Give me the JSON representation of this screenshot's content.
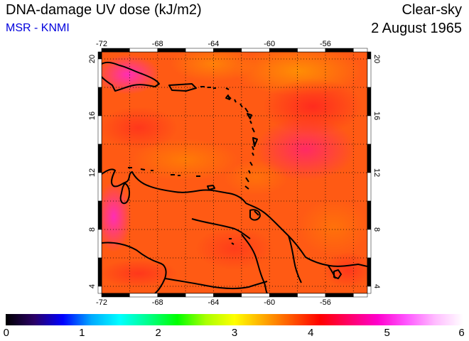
{
  "header": {
    "title": "DNA-damage UV dose (kJ/m2)",
    "subtitle": "MSR - KNMI",
    "condition": "Clear-sky",
    "date": "2 August 1965"
  },
  "map": {
    "lon_range": [
      -72,
      -53
    ],
    "lat_range": [
      3.5,
      20.5
    ],
    "lon_ticks": [
      -72,
      -68,
      -64,
      -60,
      -56
    ],
    "lat_ticks": [
      4,
      8,
      12,
      16,
      20
    ],
    "lon_tick_labels": [
      "-72",
      "-68",
      "-64",
      "-60",
      "-56"
    ],
    "lat_tick_labels": [
      "4",
      "8",
      "12",
      "16",
      "20"
    ],
    "gridlines": "dotted"
  },
  "colorbar": {
    "min": 0,
    "max": 6,
    "labels": [
      "0",
      "1",
      "2",
      "3",
      "4",
      "5",
      "6"
    ],
    "colors": [
      "#000000",
      "#2a0066",
      "#0000ff",
      "#00aaff",
      "#00ffff",
      "#00ff88",
      "#00ff00",
      "#aaff00",
      "#ffff00",
      "#ffaa00",
      "#ff5500",
      "#ff0000",
      "#ff0066",
      "#ff00cc",
      "#ff55ff",
      "#ffbbff",
      "#ffffff"
    ]
  },
  "dose_field": {
    "typical_value": 4.3,
    "range": [
      4.0,
      5.0
    ],
    "highest_areas": [
      "Hispaniola coast",
      "western Venezuelan coast",
      "Atlantic east of the Lesser Antilles"
    ],
    "lowest_areas": [
      "north of Puerto Rico",
      "Caribbean north of Venezuela"
    ]
  }
}
